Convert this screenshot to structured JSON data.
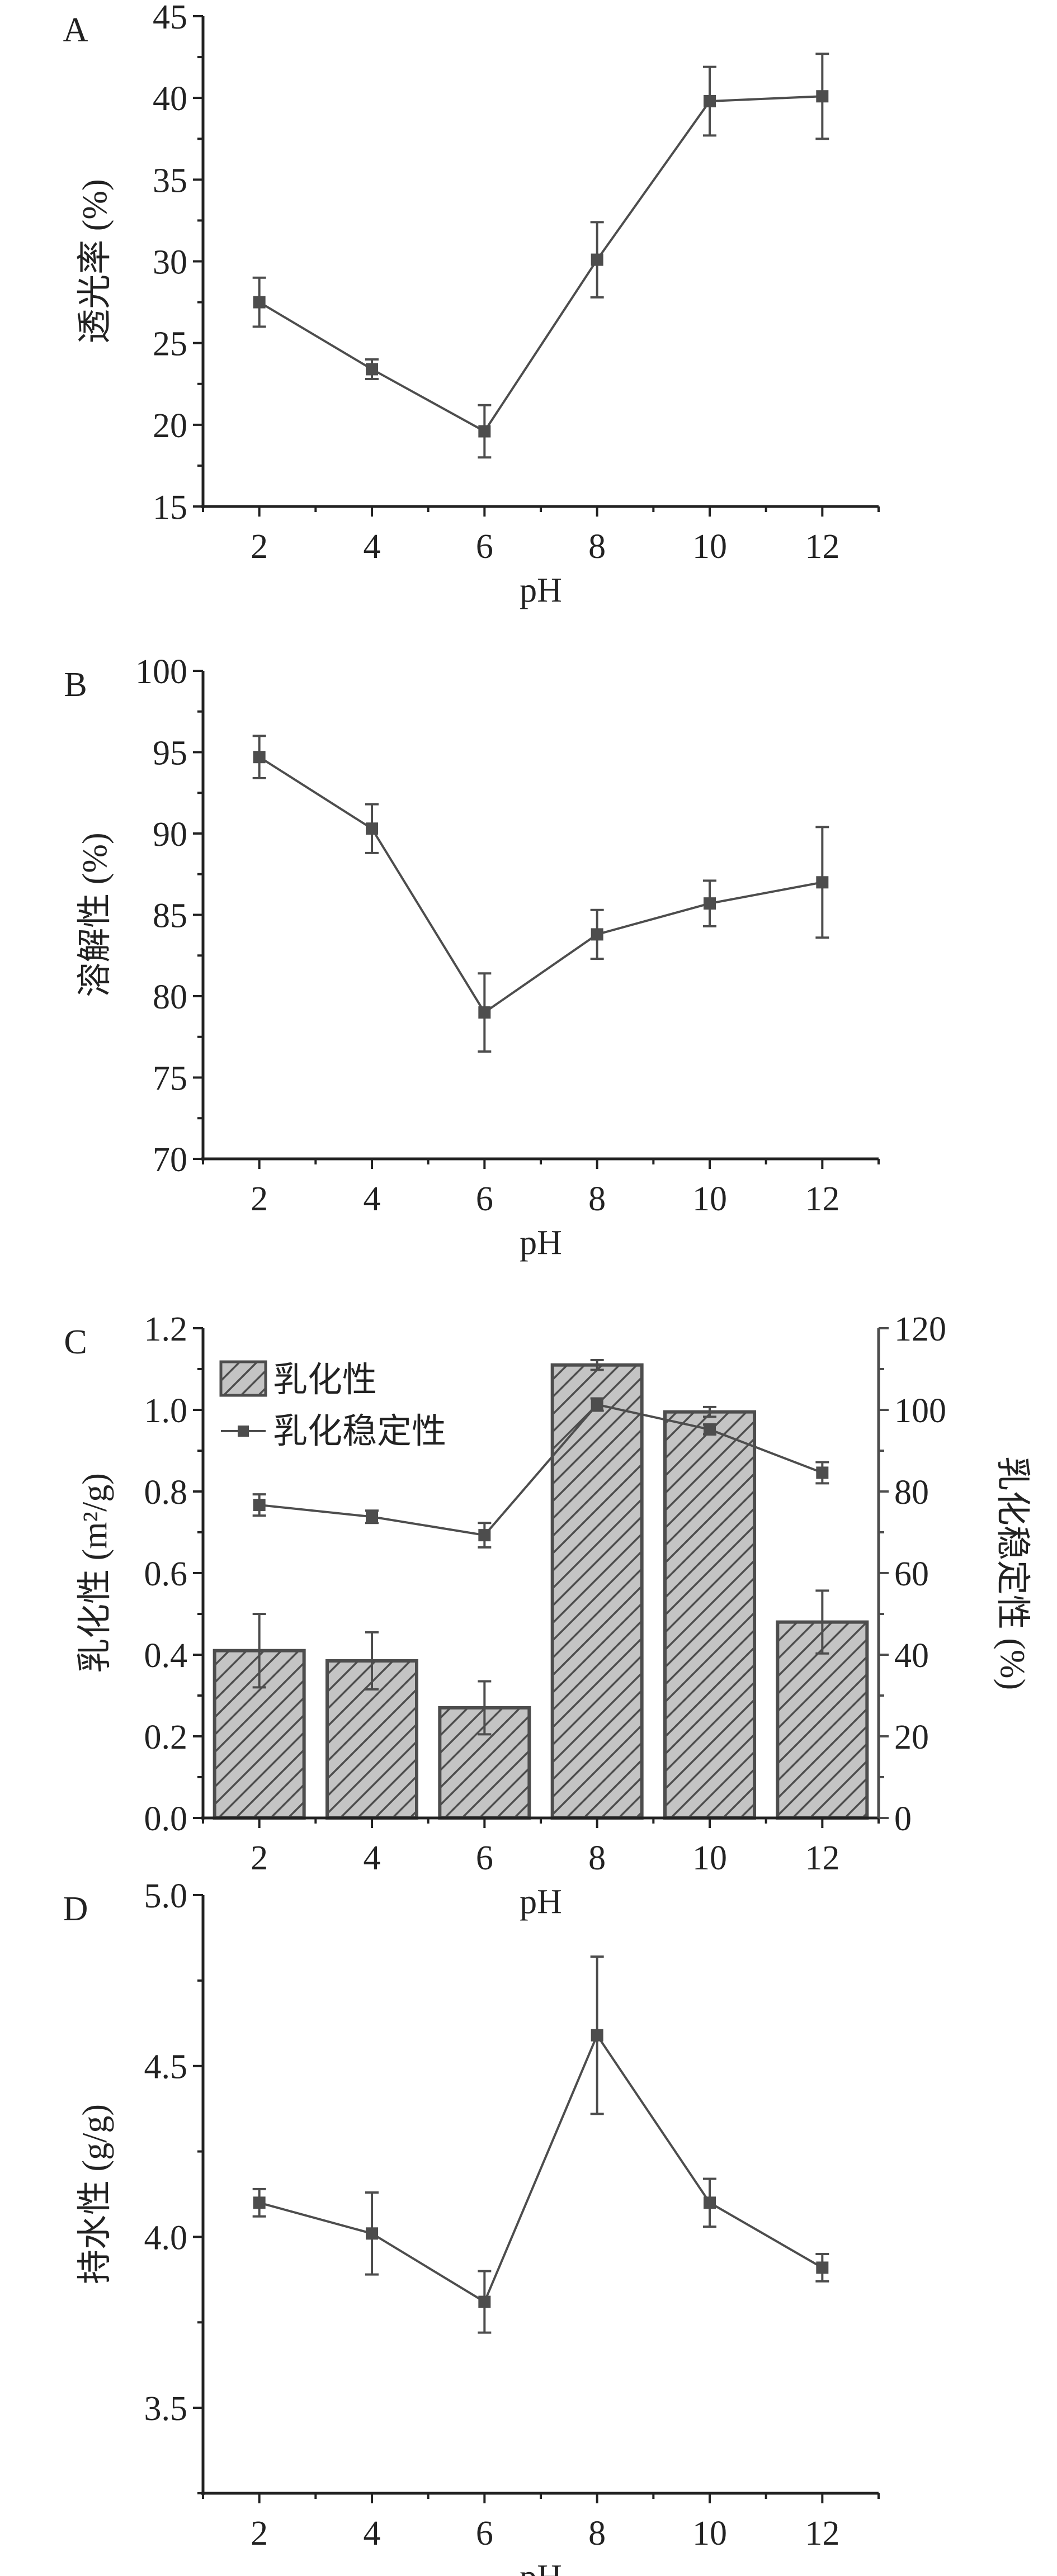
{
  "chart_data": [
    {
      "panel": "A",
      "type": "line",
      "xlabel": "pH",
      "ylabel": "透光率 (%)",
      "x": [
        2,
        4,
        6,
        8,
        10,
        12
      ],
      "xlim": [
        1,
        13
      ],
      "xticks": [
        2,
        4,
        6,
        8,
        10,
        12
      ],
      "ylim": [
        15,
        45
      ],
      "yticks": [
        "15",
        "20",
        "25",
        "30",
        "35",
        "40",
        "45"
      ],
      "series": [
        {
          "name": "透光率",
          "values": [
            27.5,
            23.4,
            19.6,
            30.1,
            39.8,
            40.1
          ],
          "errors": [
            1.5,
            0.6,
            1.6,
            2.3,
            2.1,
            2.6
          ]
        }
      ],
      "grid": false
    },
    {
      "panel": "B",
      "type": "line",
      "xlabel": "pH",
      "ylabel": "溶解性 (%)",
      "x": [
        2,
        4,
        6,
        8,
        10,
        12
      ],
      "xlim": [
        1,
        13
      ],
      "xticks": [
        2,
        4,
        6,
        8,
        10,
        12
      ],
      "ylim": [
        70,
        100
      ],
      "yticks": [
        "70",
        "75",
        "80",
        "85",
        "90",
        "95",
        "100"
      ],
      "series": [
        {
          "name": "溶解性",
          "values": [
            94.7,
            90.3,
            79.0,
            83.8,
            85.7,
            87.0
          ],
          "errors": [
            1.3,
            1.5,
            2.4,
            1.5,
            1.4,
            3.4
          ]
        }
      ],
      "grid": false
    },
    {
      "panel": "C",
      "type": "bar",
      "xlabel": "pH",
      "ylabel": "乳化性 (m²/g)",
      "ylabel_right": "乳化稳定性 (%)",
      "x": [
        2,
        4,
        6,
        8,
        10,
        12
      ],
      "xlim": [
        1,
        13
      ],
      "xticks": [
        2,
        4,
        6,
        8,
        10,
        12
      ],
      "ylim": [
        0,
        1.2
      ],
      "yticks": [
        "0.0",
        "0.2",
        "0.4",
        "0.6",
        "0.8",
        "1.0",
        "1.2"
      ],
      "ylim_right": [
        0,
        120
      ],
      "yticks_right": [
        "0",
        "20",
        "40",
        "60",
        "80",
        "100",
        "120"
      ],
      "legend_position": "top-left",
      "series": [
        {
          "name": "乳化性",
          "type": "bar",
          "axis": "left",
          "values": [
            0.41,
            0.385,
            0.27,
            1.11,
            0.995,
            0.48
          ],
          "errors": [
            0.09,
            0.07,
            0.065,
            0.012,
            0.012,
            0.077
          ]
        },
        {
          "name": "乳化稳定性",
          "type": "line",
          "axis": "right",
          "values": [
            76.7,
            73.8,
            69.3,
            101.3,
            95.2,
            84.6
          ],
          "errors": [
            2.6,
            1.5,
            3.0,
            1.5,
            1.2,
            2.6
          ]
        }
      ],
      "grid": false
    },
    {
      "panel": "D",
      "type": "line",
      "xlabel": "pH",
      "ylabel": "持水性 (g/g)",
      "x": [
        2,
        4,
        6,
        8,
        10,
        12
      ],
      "xlim": [
        1,
        13
      ],
      "xticks": [
        2,
        4,
        6,
        8,
        10,
        12
      ],
      "ylim": [
        3.25,
        5.0
      ],
      "yticks": [
        "3.5",
        "4.0",
        "4.5",
        "5.0"
      ],
      "series": [
        {
          "name": "持水性",
          "values": [
            4.1,
            4.01,
            3.81,
            4.59,
            4.1,
            3.91
          ],
          "errors": [
            0.04,
            0.12,
            0.09,
            0.23,
            0.07,
            0.04
          ]
        }
      ],
      "grid": false
    }
  ],
  "colors": {
    "line": "#4d4d4d",
    "bar_fill": "#bdbdbd",
    "axis": "#222222"
  }
}
